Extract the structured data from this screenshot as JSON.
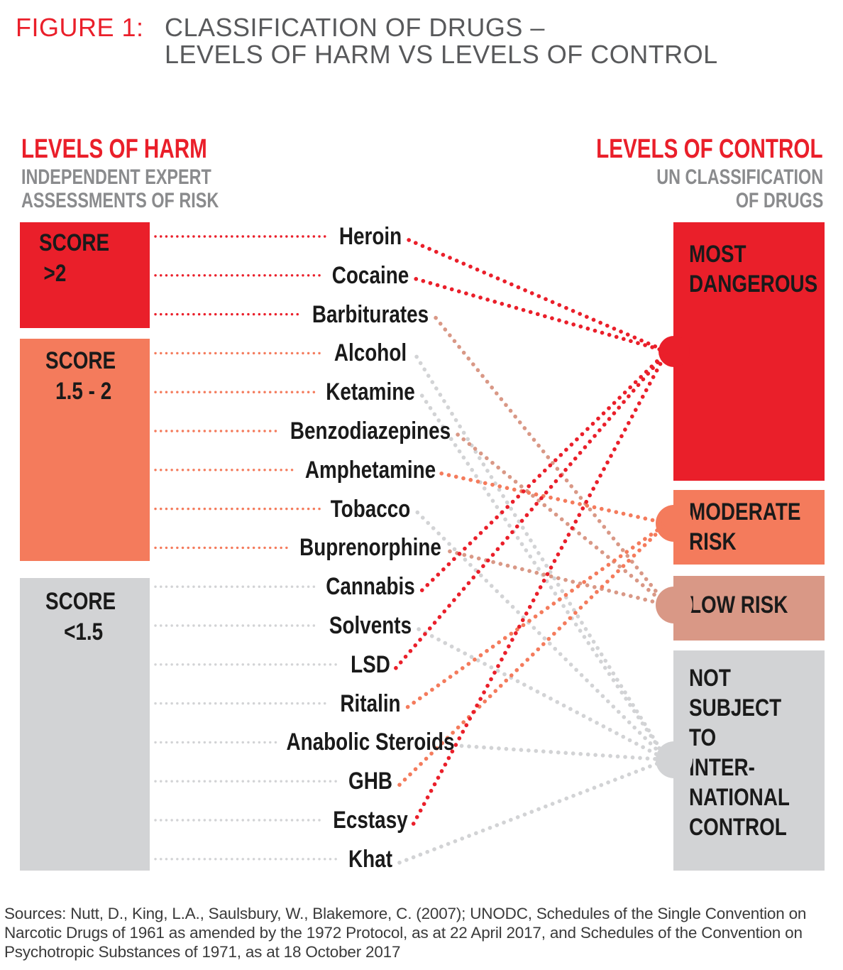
{
  "figure": {
    "label": "FIGURE 1:",
    "title_line1": "CLASSIFICATION OF DRUGS –",
    "title_line2": "LEVELS OF HARM VS LEVELS OF CONTROL"
  },
  "harm": {
    "title": "LEVELS OF HARM",
    "subtitle_line1": "INDEPENDENT EXPERT",
    "subtitle_line2": "ASSESSMENTS OF RISK",
    "scores": [
      {
        "line1": "SCORE",
        "line2": ">2"
      },
      {
        "line1": "SCORE",
        "line2": "1.5 - 2"
      },
      {
        "line1": "SCORE",
        "line2": "<1.5"
      }
    ]
  },
  "control": {
    "title": "LEVELS OF CONTROL",
    "subtitle_line1": "UN CLASSIFICATION",
    "subtitle_line2": "OF DRUGS",
    "categories": [
      {
        "lines": [
          "MOST",
          "DANGEROUS"
        ]
      },
      {
        "lines": [
          "MODERATE",
          "RISK"
        ]
      },
      {
        "lines": [
          "LOW RISK"
        ]
      },
      {
        "lines": [
          "NOT",
          "SUBJECT",
          "TO",
          "INTER-",
          "NATIONAL",
          "CONTROL"
        ]
      }
    ]
  },
  "drugs": [
    {
      "name": "Heroin",
      "harm": "high",
      "control": "most"
    },
    {
      "name": "Cocaine",
      "harm": "high",
      "control": "most"
    },
    {
      "name": "Barbiturates",
      "harm": "high",
      "control": "low"
    },
    {
      "name": "Alcohol",
      "harm": "mid",
      "control": "none"
    },
    {
      "name": "Ketamine",
      "harm": "mid",
      "control": "none"
    },
    {
      "name": "Benzodiazepines",
      "harm": "mid",
      "control": "low"
    },
    {
      "name": "Amphetamine",
      "harm": "mid",
      "control": "moderate"
    },
    {
      "name": "Tobacco",
      "harm": "mid",
      "control": "none"
    },
    {
      "name": "Buprenorphine",
      "harm": "mid",
      "control": "low"
    },
    {
      "name": "Cannabis",
      "harm": "low",
      "control": "most"
    },
    {
      "name": "Solvents",
      "harm": "low",
      "control": "none"
    },
    {
      "name": "LSD",
      "harm": "low",
      "control": "most"
    },
    {
      "name": "Ritalin",
      "harm": "low",
      "control": "moderate"
    },
    {
      "name": "Anabolic Steroids",
      "harm": "low",
      "control": "none"
    },
    {
      "name": "GHB",
      "harm": "low",
      "control": "moderate"
    },
    {
      "name": "Ecstasy",
      "harm": "low",
      "control": "most"
    },
    {
      "name": "Khat",
      "harm": "low",
      "control": "none"
    }
  ],
  "colors": {
    "red": "#ea1f2a",
    "orange": "#f47b5c",
    "salmon": "#d99886",
    "grey": "#d2d3d5",
    "title_grey": "#58595b"
  },
  "sources": "Sources: Nutt, D., King, L.A., Saulsbury, W., Blakemore, C. (2007); UNODC, Schedules of the Single Convention on Narcotic Drugs of 1961 as amended by the 1972 Protocol, as at 22 April 2017, and Schedules of the Convention on Psychotropic Substances of 1971, as at 18 October 2017"
}
